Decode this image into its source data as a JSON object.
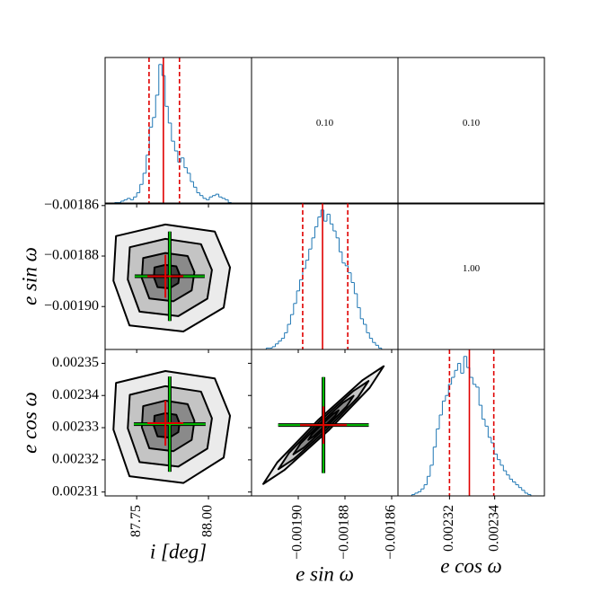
{
  "chart_data": [
    {
      "type": "histogram",
      "color": "#1f77b4",
      "xlim": [
        87.64,
        88.15
      ],
      "xticks": [
        87.75,
        {
          "value": 88,
          "label": "88.00"
        }
      ],
      "ylim": [
        0,
        105
      ],
      "bins": [
        87.64,
        87.651,
        87.662,
        87.673,
        87.684,
        87.695,
        87.706,
        87.717,
        87.728,
        87.739,
        87.75,
        87.761,
        87.772,
        87.783,
        87.794,
        87.805,
        87.816,
        87.827,
        87.838,
        87.849,
        87.86,
        87.871,
        87.882,
        87.893,
        87.904,
        87.915,
        87.926,
        87.937,
        87.948,
        87.959,
        87.97,
        87.981,
        87.992,
        88.003,
        88.014,
        88.025,
        88.036,
        88.047,
        88.058,
        88.069,
        88.08
      ],
      "counts": [
        0,
        0,
        0,
        1,
        1,
        2,
        3,
        4,
        3,
        5,
        8,
        14,
        22,
        35,
        55,
        62,
        78,
        100,
        92,
        70,
        58,
        45,
        38,
        30,
        33,
        26,
        22,
        16,
        12,
        8,
        6,
        4,
        3,
        5,
        6,
        7,
        5,
        4,
        3,
        1
      ],
      "lines": {
        "color": "#e00000",
        "median": 87.843,
        "quantiles": [
          87.793,
          87.899
        ]
      }
    },
    {
      "type": "text",
      "text": "0.10"
    },
    {
      "type": "text",
      "text": "0.10"
    },
    {
      "type": "contour",
      "xlim": [
        87.64,
        88.15
      ],
      "xticks": [
        87.75,
        {
          "value": 88,
          "label": "88.00"
        }
      ],
      "ylim": [
        -0.001917,
        -0.001859
      ],
      "yticks": [
        {
          "value": -0.00186,
          "label": "−0.00186"
        },
        {
          "value": -0.00188,
          "label": "−0.00188"
        },
        {
          "value": -0.0019,
          "label": "−0.00190"
        }
      ],
      "ylabel": "e sin ω",
      "contours": [
        {
          "fill": "#ebebeb",
          "x": [
            87.678,
            87.85,
            88.022,
            88.075,
            88.053,
            87.9125,
            87.725,
            87.669
          ],
          "y": [
            -0.0018721,
            -0.0018675,
            -0.0018703,
            -0.0018845,
            -0.0019004,
            -0.0019099,
            -0.0019075,
            -0.0018898
          ]
        },
        {
          "fill": "#c4c4c4",
          "x": [
            87.726,
            87.85,
            87.974,
            88.012,
            87.996,
            87.895,
            87.76,
            87.719
          ],
          "y": [
            -0.0018765,
            -0.0018732,
            -0.0018753,
            -0.0018855,
            -0.0018969,
            -0.0019038,
            -0.001902,
            -0.0018893
          ]
        },
        {
          "fill": "#8a8a8a",
          "x": [
            87.7725,
            87.85,
            87.9275,
            87.951,
            87.9415,
            87.878,
            87.794,
            87.768
          ],
          "y": [
            -0.0018808,
            -0.0018788,
            -0.00188,
            -0.0018864,
            -0.0018936,
            -0.0018979,
            -0.0018968,
            -0.0018888
          ]
        },
        {
          "fill": "#404040",
          "x": [
            87.812,
            87.85,
            87.888,
            87.899,
            87.895,
            87.864,
            87.8225,
            87.81
          ],
          "y": [
            -0.0018845,
            -0.0018835,
            -0.0018841,
            -0.0018872,
            -0.0018907,
            -0.0018928,
            -0.0018923,
            -0.0018884
          ]
        }
      ],
      "crosses": [
        {
          "color": "#00c000",
          "x": 87.865,
          "y": -0.001888,
          "xerr": 0.122,
          "yerr": 1.77e-05
        },
        {
          "color": "#e00000",
          "x": 87.85,
          "y": -0.001888,
          "xerr": 0.0625,
          "yerr": 8.5e-06
        }
      ]
    },
    {
      "type": "histogram",
      "color": "#1f77b4",
      "xlim": [
        -0.00192,
        -0.0018573
      ],
      "xticks": [
        {
          "value": -0.0019,
          "label": "−0.00190"
        },
        {
          "value": -0.00188,
          "label": "−0.00188"
        },
        {
          "value": -0.00186,
          "label": "−0.00186"
        }
      ],
      "ylim": [
        0,
        105
      ],
      "bins": [
        -0.001915,
        -0.0019137,
        -0.0019124,
        -0.0019111,
        -0.0019098,
        -0.0019085,
        -0.0019072,
        -0.0019059,
        -0.0019046,
        -0.0019033,
        -0.001902,
        -0.0019007,
        -0.0018994,
        -0.0018981,
        -0.0018968,
        -0.0018955,
        -0.0018942,
        -0.0018929,
        -0.0018916,
        -0.0018903,
        -0.001889,
        -0.0018877,
        -0.0018864,
        -0.0018851,
        -0.0018838,
        -0.0018825,
        -0.0018812,
        -0.0018799,
        -0.0018786,
        -0.0018773,
        -0.001876,
        -0.0018747,
        -0.0018734,
        -0.0018721,
        -0.0018708,
        -0.0018695,
        -0.0018682,
        -0.0018669,
        -0.0018656,
        -0.0018643,
        -0.001863
      ],
      "counts": [
        0,
        1,
        1,
        2,
        4,
        6,
        8,
        12,
        18,
        25,
        33,
        42,
        50,
        58,
        64,
        72,
        80,
        88,
        95,
        100,
        92,
        97,
        90,
        85,
        80,
        70,
        62,
        60,
        55,
        48,
        40,
        30,
        22,
        18,
        12,
        8,
        5,
        3,
        1,
        0
      ],
      "lines": {
        "color": "#e00000",
        "median": -0.0018896,
        "quantiles": [
          -0.0018981,
          -0.0018788
        ]
      }
    },
    {
      "type": "text",
      "text": "1.00"
    },
    {
      "type": "contour",
      "xlim": [
        87.64,
        88.15
      ],
      "xticks": [
        87.75,
        {
          "value": 88,
          "label": "88.00"
        }
      ],
      "ylim": [
        0.0023088,
        0.0023543
      ],
      "yticks": [
        0.00235,
        0.00234,
        0.00233,
        0.00232,
        0.00231
      ],
      "xlabel": "i [deg]",
      "ylabel": "e cos ω",
      "contours": [
        {
          "fill": "#ebebeb",
          "x": [
            87.678,
            87.85,
            88.022,
            88.075,
            88.053,
            87.9125,
            87.725,
            87.669
          ],
          "y": [
            0.0023439,
            0.0023476,
            0.0023453,
            0.0023337,
            0.0023207,
            0.0023128,
            0.0023149,
            0.0023294
          ]
        },
        {
          "fill": "#c4c4c4",
          "x": [
            87.726,
            87.85,
            87.974,
            88.012,
            87.996,
            87.895,
            87.76,
            87.719
          ],
          "y": [
            0.0023402,
            0.0023429,
            0.0023412,
            0.0023329,
            0.0023235,
            0.0023179,
            0.0023193,
            0.0023298
          ]
        },
        {
          "fill": "#8a8a8a",
          "x": [
            87.7725,
            87.85,
            87.9275,
            87.951,
            87.9415,
            87.878,
            87.794,
            87.768
          ],
          "y": [
            0.0023367,
            0.0023384,
            0.0023373,
            0.0023321,
            0.0023262,
            0.0023227,
            0.0023236,
            0.0023301
          ]
        },
        {
          "fill": "#404040",
          "x": [
            87.812,
            87.85,
            87.888,
            87.899,
            87.895,
            87.864,
            87.8225,
            87.81
          ],
          "y": [
            0.0023337,
            0.0023345,
            0.002334,
            0.0023314,
            0.0023286,
            0.0023269,
            0.0023273,
            0.0023305
          ]
        }
      ],
      "crosses": [
        {
          "color": "#00c000",
          "x": 87.865,
          "y": 0.0023311,
          "xerr": 0.125,
          "yerr": 1.48e-05
        },
        {
          "color": "#e00000",
          "x": 87.85,
          "y": 0.0023314,
          "xerr": 0.0625,
          "yerr": 7e-06
        }
      ]
    },
    {
      "type": "contour",
      "xlim": [
        -0.00192,
        -0.0018573
      ],
      "xticks": [
        {
          "value": -0.0019,
          "label": "−0.00190"
        },
        {
          "value": -0.00188,
          "label": "−0.00188"
        },
        {
          "value": -0.00186,
          "label": "−0.00186"
        }
      ],
      "ylim": [
        0.0023088,
        0.0023543
      ],
      "yticks": [
        0.00235,
        0.00234,
        0.00233,
        0.00232,
        0.00231
      ],
      "xlabel": "e sin ω",
      "contours": [
        {
          "fill": "#ebebeb",
          "x": [
            -0.0018634,
            -0.0018694,
            -0.0018871,
            -0.001906,
            -0.001915,
            -0.001909,
            -0.0018913,
            -0.0018724
          ],
          "y": [
            0.0023491,
            0.0023424,
            0.0023291,
            0.0023168,
            0.0023125,
            0.0023192,
            0.0023325,
            0.0023448
          ]
        },
        {
          "fill": "#c4c4c4",
          "x": [
            -0.0018699,
            -0.0018744,
            -0.0018877,
            -0.0019018,
            -0.0019085,
            -0.001904,
            -0.0018907,
            -0.0018766
          ],
          "y": [
            0.0023445,
            0.0023395,
            0.0023295,
            0.0023203,
            0.0023171,
            0.0023221,
            0.0023321,
            0.0023413
          ]
        },
        {
          "fill": "#8a8a8a",
          "x": [
            -0.0018763,
            -0.0018793,
            -0.0018882,
            -0.0018976,
            -0.0019021,
            -0.0018991,
            -0.0018902,
            -0.0018808
          ],
          "y": [
            0.0023399,
            0.0023366,
            0.00233,
            0.0023238,
            0.0023217,
            0.002325,
            0.0023316,
            0.0023378
          ]
        },
        {
          "fill": "#404040",
          "x": [
            -0.0018827,
            -0.0018842,
            -0.0018887,
            -0.0018934,
            -0.0018957,
            -0.0018942,
            -0.0018897,
            -0.001885
          ],
          "y": [
            0.0023354,
            0.0023337,
            0.0023304,
            0.0023273,
            0.0023262,
            0.0023279,
            0.0023312,
            0.0023343
          ]
        }
      ],
      "crosses": [
        {
          "color": "#00c000",
          "x": -0.0018892,
          "y": 0.0023308,
          "xerr": 1.94e-05,
          "yerr": 1.49e-05
        },
        {
          "color": "#e00000",
          "x": -0.0018892,
          "y": 0.0023308,
          "xerr": 1e-05,
          "yerr": 5.8e-06
        }
      ]
    },
    {
      "type": "histogram",
      "color": "#1f77b4",
      "xlim": [
        0.0022972,
        0.002362
      ],
      "xticks": [
        0.00232,
        0.00234
      ],
      "ylim": [
        0,
        105
      ],
      "xlabel": "e cos ω",
      "bins": [
        0.002302,
        0.00230335,
        0.0023047,
        0.00230605,
        0.0023074,
        0.00230875,
        0.0023101,
        0.00231145,
        0.0023128,
        0.00231415,
        0.0023155,
        0.00231685,
        0.0023182,
        0.00231955,
        0.0023209,
        0.00232225,
        0.0023236,
        0.00232495,
        0.0023263,
        0.00232765,
        0.002329,
        0.00233035,
        0.0023317,
        0.00233305,
        0.0023344,
        0.00233575,
        0.0023371,
        0.00233845,
        0.0023398,
        0.00234115,
        0.0023425,
        0.00234385,
        0.0023452,
        0.00234655,
        0.0023479,
        0.00234925,
        0.0023506,
        0.00235195,
        0.0023533,
        0.00235465,
        0.002356
      ],
      "counts": [
        0,
        1,
        2,
        3,
        5,
        8,
        14,
        22,
        35,
        48,
        58,
        68,
        72,
        80,
        85,
        90,
        95,
        88,
        100,
        92,
        85,
        80,
        78,
        65,
        55,
        50,
        42,
        38,
        30,
        26,
        22,
        18,
        15,
        12,
        10,
        8,
        6,
        4,
        2,
        1
      ],
      "lines": {
        "color": "#e00000",
        "median": 0.0023288,
        "quantiles": [
          0.00232,
          0.0023396
        ]
      }
    }
  ]
}
